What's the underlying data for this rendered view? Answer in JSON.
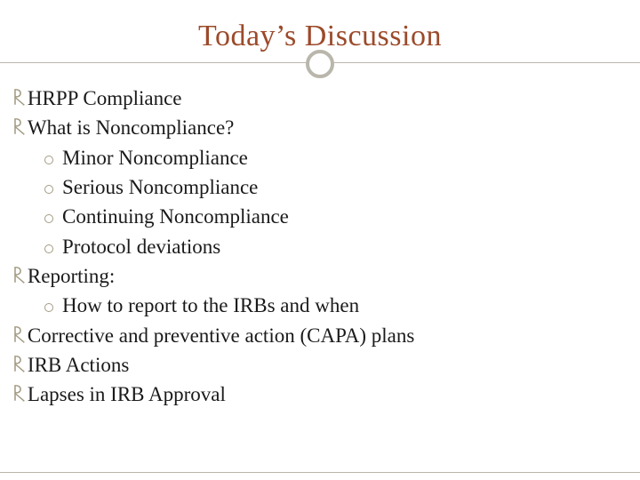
{
  "colors": {
    "title": "#9c4a2a",
    "rule": "#b9b6ab",
    "bullet_lvl1": "#a39b82",
    "bullet_lvl2_border": "#a39b82",
    "body_text": "#1a1a1a",
    "background": "#ffffff"
  },
  "typography": {
    "title_fontsize": 34,
    "body_fontsize": 23,
    "font_family": "Georgia, Times New Roman, serif"
  },
  "title": "Today’s Discussion",
  "items": {
    "i0": "HRPP Compliance",
    "i1": "What is Noncompliance?",
    "i1_sub": {
      "s0": "Minor Noncompliance",
      "s1": "Serious Noncompliance",
      "s2": "Continuing Noncompliance",
      "s3": "Protocol deviations"
    },
    "i2": "Reporting:",
    "i2_sub": {
      "s0": "How to report to the IRBs and when"
    },
    "i3": "Corrective and preventive action (CAPA) plans",
    "i4": "IRB Actions",
    "i5": "Lapses in IRB Approval"
  }
}
